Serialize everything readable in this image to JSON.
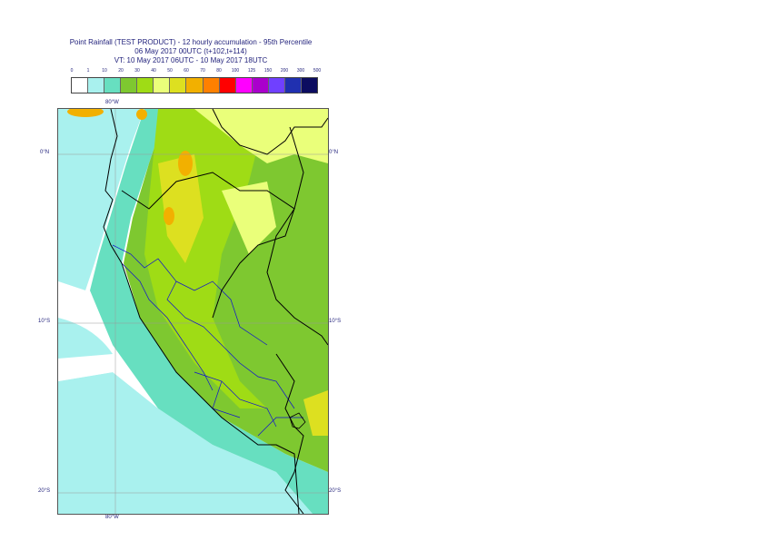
{
  "title": {
    "line1": "Point Rainfall (TEST PRODUCT) - 12 hourly accumulation - 95th Percentile",
    "line2": "06 May 2017 00UTC (t+102,t+114)",
    "line3": "VT: 10 May 2017 06UTC - 10 May 2017 18UTC"
  },
  "legend": {
    "ticks": [
      "0",
      "1",
      "10",
      "20",
      "30",
      "40",
      "50",
      "60",
      "70",
      "80",
      "100",
      "125",
      "150",
      "200",
      "300",
      "500"
    ],
    "colors": [
      "#ffffff",
      "#a9f1ee",
      "#67dfc0",
      "#7ec830",
      "#9fdc15",
      "#eaff7a",
      "#dde020",
      "#f2b000",
      "#ff8000",
      "#ff0000",
      "#ff00ff",
      "#aa00cc",
      "#7040ff",
      "#2030b0",
      "#0c0c60"
    ]
  },
  "axes": {
    "lon_top": "80°W",
    "lon_bottom": "80°W",
    "lat_0_left": "0°N",
    "lat_0_right": "0°N",
    "lat_10_left": "10°S",
    "lat_10_right": "10°S",
    "lat_20_left": "20°S",
    "lat_20_right": "20°S"
  },
  "map": {
    "region": "Peru / Ecuador",
    "colors": {
      "ocean_light": "#a9f1ee",
      "coast_band": "#67dfc0",
      "green": "#7ec830",
      "light_green": "#9fdc15",
      "yellow_green": "#dde020",
      "pale_yellow": "#eaff7a",
      "orange": "#f2b000",
      "border_black": "#000000",
      "border_blue": "#1010d0"
    }
  }
}
